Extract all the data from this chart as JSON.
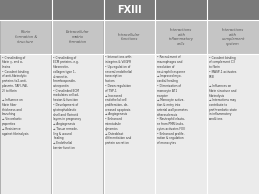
{
  "title": "FXIII",
  "title_bg": "#7a7a7a",
  "title_fg": "#ffffff",
  "header_bg": "#c5c5c5",
  "header_fg": "#555555",
  "cell_bg": "#ebebeb",
  "cell_fg": "#333333",
  "border_color": "#ffffff",
  "fig_bg": "#b0b0b0",
  "columns": [
    "Fibrin\nformation &\nstructure",
    "Extracellular\nmatrix\nformation",
    "Intracellular\nfunctions",
    "Interactions\nwith\ninflammatory\ncells",
    "Interactions\nwith\ncomplement\nsystem"
  ],
  "col_contents": [
    "• Crosslinking of\nfibrin γ- and α-\nchains\n• Covalent binding\nof anti-fibrinolytic\nproteins (α2-anti-\nplasmin, TAFI, PAI-\n2) to fibrin\n\n→ Influence on\nfibrin fiber\nthickness and\nbranching\n→ Viscoelastic\nproperties\n→ Resistance\nagainst fibrinolysis",
    "• Crosslinking of\nECM proteins, e.g.\nfibronectin,\ncollagen type 1,\nvitronectin,\nthrombospondin,\nosteopontin\n• Crosslinked ECM\nmodulates cell ad-\nhesion & function\n• Development of\ncytotrophoblastic\nshell and fibrinoid\nlayers in pregnancy\n→ Angiogenesis\n→ Tissue remode-\nling & wound\nhealing\n→ Endothelial\nbarrier function",
    "• Interactions with\nintegrins & VEGFR\n• Up-regulation of\nseveral endothelial\ntranscription\nfactors\n• Down-regulation\nof TSP-1\n→ Increased\nendothelial cell\nproliferation, de-\ncreased apoptosis\n→ Angiogenesis\n• Enhanced\nmicrotubule\ndynamics\n→ Osteoblast\ndifferentiation and\nprotein secretion",
    "• Recruitment of\nmacrophages and\nresolution of\nneutrophil response\n→ Improved myo-\ncardial healing\n• Dimerization of\nmonocyte AT1\nreceptor\n→ Monocyte activa-\ntion & entry into\narterial wall promotes\natherosclerosis\n• Neutrophil elasta-\nse from PMN leuko-\ncytes activates FXIII\n• Enhanced prolife-\nration & regulation\nof monocytes",
    "• Covalent binding\nof complement C3\nto fibrin\n• MASP-1 activates\nFXIII\n\n→ Influences on\nfibrin structure and\nfibrinolysis\n→ Interactions may\ncontribute to\nprothrombotic state\nin inflammatory\nconditions"
  ]
}
